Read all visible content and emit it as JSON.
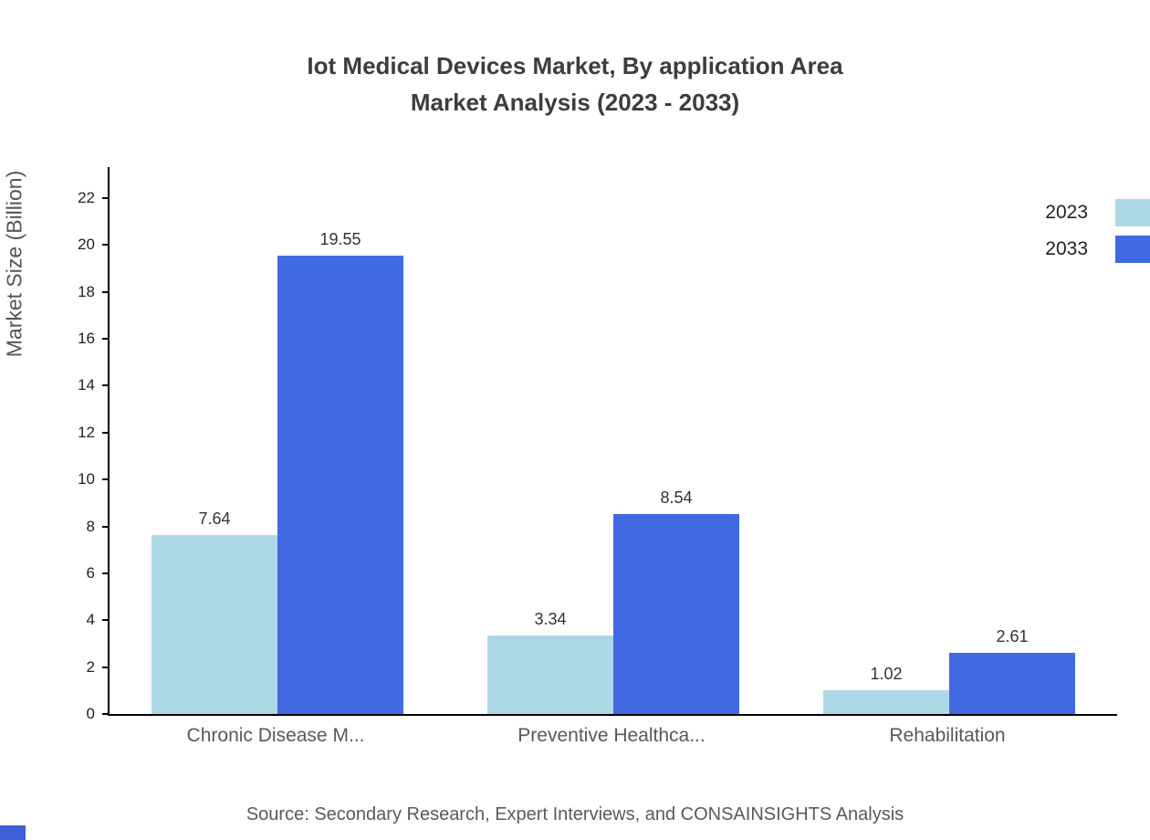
{
  "title": {
    "line1": "Iot Medical Devices Market, By application Area",
    "line2": "Market Analysis (2023 - 2033)"
  },
  "source": "Source: Secondary Research, Expert Interviews, and CONSAINSIGHTS Analysis",
  "colors": {
    "series_2023": "#add8e6",
    "series_2033": "#4169e1",
    "axis": "#000000",
    "title_text": "#3d3d3d",
    "category_text": "#595959",
    "brand": "#3f5fd7"
  },
  "chart_data": {
    "type": "bar",
    "title": "Iot Medical Devices Market, By application Area",
    "subtitle": "Market Analysis (2023 - 2033)",
    "ylabel": "Market Size (Billion)",
    "xlabel": "",
    "categories": [
      "Chronic Disease M...",
      "Preventive Healthca...",
      "Rehabilitation"
    ],
    "series": [
      {
        "name": "2023",
        "color": "#add8e6",
        "values": [
          7.64,
          3.34,
          1.02
        ]
      },
      {
        "name": "2033",
        "color": "#4169e1",
        "values": [
          19.55,
          8.54,
          2.61
        ]
      }
    ],
    "ylim": [
      0,
      22
    ],
    "ytick_step": 2,
    "grid": false,
    "legend_position": "top-right",
    "value_labels": true
  }
}
